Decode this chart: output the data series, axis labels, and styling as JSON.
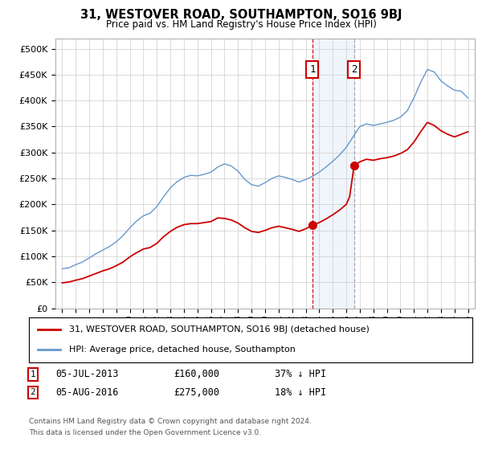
{
  "title": "31, WESTOVER ROAD, SOUTHAMPTON, SO16 9BJ",
  "subtitle": "Price paid vs. HM Land Registry's House Price Index (HPI)",
  "legend_label_red": "31, WESTOVER ROAD, SOUTHAMPTON, SO16 9BJ (detached house)",
  "legend_label_blue": "HPI: Average price, detached house, Southampton",
  "transaction1": {
    "label": "1",
    "date": "05-JUL-2013",
    "price": "£160,000",
    "pct": "37% ↓ HPI",
    "year": 2013.5
  },
  "transaction2": {
    "label": "2",
    "date": "05-AUG-2016",
    "price": "£275,000",
    "pct": "18% ↓ HPI",
    "year": 2016.58
  },
  "footer1": "Contains HM Land Registry data © Crown copyright and database right 2024.",
  "footer2": "This data is licensed under the Open Government Licence v3.0.",
  "ylim": [
    0,
    520000
  ],
  "yticks": [
    0,
    50000,
    100000,
    150000,
    200000,
    250000,
    300000,
    350000,
    400000,
    450000,
    500000
  ],
  "xlim": [
    1994.5,
    2025.5
  ],
  "background_color": "#ffffff",
  "grid_color": "#cccccc",
  "red_color": "#cc0000",
  "blue_color": "#6699cc",
  "hpi_years": [
    1995,
    1995.5,
    1996,
    1996.5,
    1997,
    1997.5,
    1998,
    1998.5,
    1999,
    1999.5,
    2000,
    2000.5,
    2001,
    2001.5,
    2002,
    2002.5,
    2003,
    2003.5,
    2004,
    2004.5,
    2005,
    2005.5,
    2006,
    2006.5,
    2007,
    2007.5,
    2008,
    2008.5,
    2009,
    2009.5,
    2010,
    2010.5,
    2011,
    2011.5,
    2012,
    2012.5,
    2013,
    2013.5,
    2014,
    2014.5,
    2015,
    2015.5,
    2016,
    2016.5,
    2017,
    2017.5,
    2018,
    2018.5,
    2019,
    2019.5,
    2020,
    2020.5,
    2021,
    2021.5,
    2022,
    2022.5,
    2023,
    2023.5,
    2024,
    2024.5,
    2025
  ],
  "hpi_values": [
    76000,
    78000,
    84000,
    89000,
    97000,
    105000,
    112000,
    119000,
    128000,
    140000,
    155000,
    168000,
    178000,
    183000,
    196000,
    215000,
    232000,
    244000,
    252000,
    256000,
    255000,
    258000,
    262000,
    272000,
    278000,
    274000,
    264000,
    248000,
    238000,
    235000,
    242000,
    250000,
    255000,
    252000,
    248000,
    243000,
    248000,
    254000,
    262000,
    272000,
    283000,
    295000,
    310000,
    330000,
    350000,
    355000,
    352000,
    355000,
    358000,
    362000,
    368000,
    380000,
    405000,
    435000,
    460000,
    455000,
    438000,
    428000,
    420000,
    418000,
    405000
  ],
  "red_years_pre": [
    1995,
    1995.5,
    1996,
    1996.5,
    1997,
    1997.5,
    1998,
    1998.5,
    1999,
    1999.5,
    2000,
    2000.5,
    2001,
    2001.5,
    2002,
    2002.5,
    2003,
    2003.5,
    2004,
    2004.5,
    2005,
    2005.5,
    2006,
    2006.5,
    2007,
    2007.5,
    2008,
    2008.5,
    2009,
    2009.5,
    2010,
    2010.5,
    2011,
    2011.5,
    2012,
    2012.5,
    2013,
    2013.5
  ],
  "red_vals_pre": [
    49000,
    50500,
    54000,
    57000,
    62000,
    67000,
    72000,
    76000,
    82000,
    89000,
    99000,
    107000,
    114000,
    117000,
    125000,
    138000,
    148000,
    156000,
    161000,
    163000,
    163000,
    165000,
    167000,
    174000,
    173000,
    170000,
    164000,
    155000,
    148000,
    146000,
    150000,
    155000,
    158000,
    155000,
    152000,
    148000,
    153000,
    160000
  ],
  "red_years_post": [
    2013.5,
    2014,
    2014.5,
    2015,
    2015.5,
    2016,
    2016.25,
    2016.58
  ],
  "red_vals_post": [
    160000,
    165000,
    172000,
    180000,
    189000,
    200000,
    215000,
    275000
  ],
  "red_years_final": [
    2016.58,
    2017,
    2017.5,
    2018,
    2018.5,
    2019,
    2019.5,
    2020,
    2020.5,
    2021,
    2021.5,
    2022,
    2022.5,
    2023,
    2023.5,
    2024,
    2024.5,
    2025
  ],
  "red_vals_final": [
    275000,
    282000,
    287000,
    285000,
    288000,
    290000,
    293000,
    298000,
    305000,
    320000,
    340000,
    358000,
    352000,
    342000,
    335000,
    330000,
    335000,
    340000
  ]
}
